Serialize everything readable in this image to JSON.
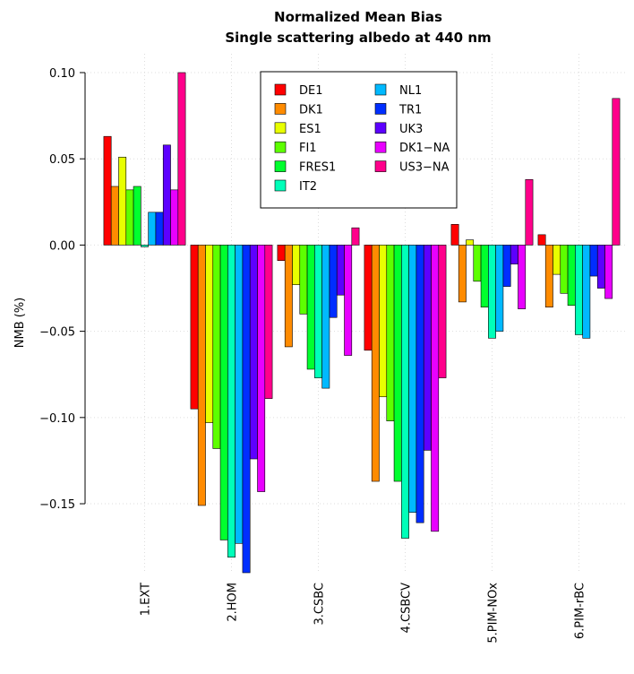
{
  "chart_data": {
    "type": "bar",
    "title": "Normalized Mean Bias",
    "subtitle": "Single scattering albedo at 440 nm",
    "y_label": "NMB (%)",
    "categories": [
      "1.EXT",
      "2.HOM",
      "3.CSBC",
      "4.CSBCV",
      "5.PIM-NOx",
      "6.PIM-rBC"
    ],
    "series": [
      {
        "name": "DE1",
        "color": "#FF0000",
        "values": [
          0.063,
          -0.095,
          -0.009,
          -0.061,
          0.012,
          0.006
        ]
      },
      {
        "name": "DK1",
        "color": "#FF8B00",
        "values": [
          0.034,
          -0.151,
          -0.059,
          -0.137,
          -0.033,
          -0.036
        ]
      },
      {
        "name": "ES1",
        "color": "#E8FF00",
        "values": [
          0.051,
          -0.103,
          -0.023,
          -0.088,
          0.003,
          -0.017
        ]
      },
      {
        "name": "FI1",
        "color": "#5DFF00",
        "values": [
          0.032,
          -0.118,
          -0.04,
          -0.102,
          -0.021,
          -0.028
        ]
      },
      {
        "name": "FRES1",
        "color": "#00FF2E",
        "values": [
          0.034,
          -0.171,
          -0.072,
          -0.137,
          -0.036,
          -0.035
        ]
      },
      {
        "name": "IT2",
        "color": "#00FFB9",
        "values": [
          -0.001,
          -0.181,
          -0.077,
          -0.17,
          -0.054,
          -0.052
        ]
      },
      {
        "name": "NL1",
        "color": "#00B9FF",
        "values": [
          0.019,
          -0.173,
          -0.083,
          -0.155,
          -0.05,
          -0.054
        ]
      },
      {
        "name": "TR1",
        "color": "#002EFF",
        "values": [
          0.019,
          -0.19,
          -0.042,
          -0.161,
          -0.024,
          -0.018
        ]
      },
      {
        "name": "UK3",
        "color": "#5D00FF",
        "values": [
          0.058,
          -0.124,
          -0.029,
          -0.119,
          -0.011,
          -0.025
        ]
      },
      {
        "name": "DK1−NA",
        "color": "#E800FF",
        "values": [
          0.032,
          -0.143,
          -0.064,
          -0.166,
          -0.037,
          -0.031
        ]
      },
      {
        "name": "US3−NA",
        "color": "#FF008B",
        "values": [
          0.1,
          -0.089,
          0.01,
          -0.077,
          0.038,
          0.085
        ]
      }
    ],
    "ylim": [
      -0.19,
      0.1
    ],
    "yticks": [
      {
        "value": 0.1,
        "label": "0.10"
      },
      {
        "value": 0.05,
        "label": "0.05"
      },
      {
        "value": 0,
        "label": "0.00"
      },
      {
        "value": -0.05,
        "label": "−0.05"
      },
      {
        "value": -0.1,
        "label": "−0.10"
      },
      {
        "value": -0.15,
        "label": "−0.15"
      }
    ],
    "grid": true
  }
}
